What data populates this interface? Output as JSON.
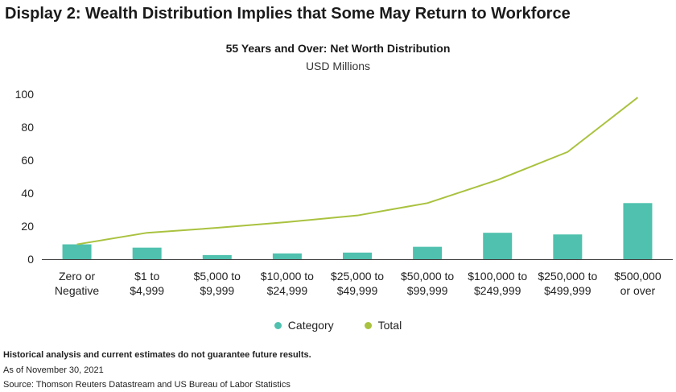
{
  "header": {
    "display_title": "Display 2: Wealth Distribution Implies that Some May Return to Workforce"
  },
  "chart_data": {
    "type": "bar",
    "title": "55 Years and Over: Net Worth Distribution",
    "subtitle": "USD Millions",
    "categories": [
      [
        "Zero or",
        "Negative"
      ],
      [
        "$1 to",
        "$4,999"
      ],
      [
        "$5,000 to",
        "$9,999"
      ],
      [
        "$10,000 to",
        "$24,999"
      ],
      [
        "$25,000 to",
        "$49,999"
      ],
      [
        "$50,000 to",
        "$99,999"
      ],
      [
        "$100,000 to",
        "$249,999"
      ],
      [
        "$250,000 to",
        "$499,999"
      ],
      [
        "$500,000",
        "or over"
      ]
    ],
    "series": [
      {
        "name": "Category",
        "type": "bar",
        "color": "#4fc1ae",
        "values": [
          9,
          7,
          2.5,
          3.5,
          4,
          7.5,
          16,
          15,
          34
        ]
      },
      {
        "name": "Total",
        "type": "line",
        "color": "#a9c23f",
        "values": [
          9,
          16,
          19,
          22.5,
          26.5,
          34,
          48,
          65,
          98
        ]
      }
    ],
    "yticks": [
      0,
      20,
      40,
      60,
      80,
      100
    ],
    "ylim": [
      0,
      100
    ],
    "grid": false,
    "legend_position": "bottom-center"
  },
  "footer": {
    "disclaimer": "Historical analysis and current estimates do not guarantee future results.",
    "date": "As of November 30, 2021",
    "source": "Source: Thomson Reuters Datastream and US Bureau of Labor Statistics"
  }
}
